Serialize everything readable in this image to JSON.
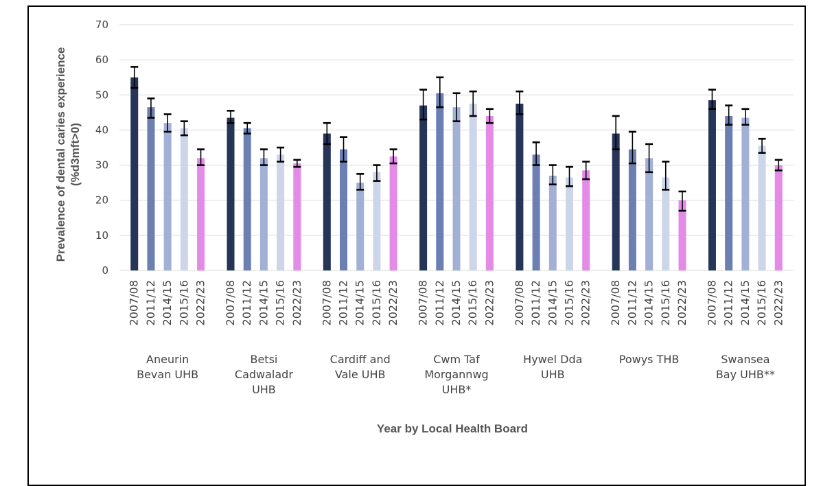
{
  "chart_data": {
    "type": "bar",
    "xlabel": "Year by Local Health Board",
    "ylabel_lines": [
      "Prevalence of dental caries experience",
      "(%d3mft>0)"
    ],
    "ylim": [
      0,
      70
    ],
    "yticks": [
      0,
      10,
      20,
      30,
      40,
      50,
      60,
      70
    ],
    "grid": "horizontal",
    "error_bars": true,
    "years": [
      "2007/08",
      "2011/12",
      "2014/15",
      "2015/16",
      "2022/23"
    ],
    "year_colors": [
      "#263457",
      "#6b7fb3",
      "#a3b0d6",
      "#cdd5ea",
      "#e38be7"
    ],
    "groups": [
      {
        "label": [
          "Aneurin",
          "Bevan UHB"
        ],
        "values": [
          55,
          46.5,
          42,
          40.5,
          32
        ],
        "ci_low": [
          52,
          43.5,
          39.5,
          38.5,
          30
        ],
        "ci_high": [
          58,
          49,
          44.5,
          42.5,
          34.5
        ]
      },
      {
        "label": [
          "Betsi",
          "Cadwaladr",
          "UHB"
        ],
        "values": [
          43.5,
          40.5,
          32,
          33,
          30.5
        ],
        "ci_low": [
          42,
          39,
          30,
          31,
          29.5
        ],
        "ci_high": [
          45.5,
          42,
          34.5,
          35,
          31.5
        ]
      },
      {
        "label": [
          "Cardiff and",
          "Vale UHB"
        ],
        "values": [
          39,
          34.5,
          25,
          28,
          32.5
        ],
        "ci_low": [
          36,
          31,
          23,
          25.5,
          30.5
        ],
        "ci_high": [
          42,
          38,
          27.5,
          30,
          34.5
        ]
      },
      {
        "label": [
          "Cwm Taf",
          "Morgannwg",
          "UHB*"
        ],
        "values": [
          47,
          50.5,
          46.5,
          47.5,
          44
        ],
        "ci_low": [
          43,
          46.5,
          42.5,
          44,
          42
        ],
        "ci_high": [
          51.5,
          55,
          50.5,
          51,
          46
        ]
      },
      {
        "label": [
          "Hywel Dda",
          "UHB"
        ],
        "values": [
          47.5,
          33,
          27,
          26.5,
          28.5
        ],
        "ci_low": [
          44.5,
          30,
          24.5,
          24,
          26
        ],
        "ci_high": [
          51,
          36.5,
          30,
          29.5,
          31
        ]
      },
      {
        "label": [
          "Powys THB"
        ],
        "values": [
          39,
          34.5,
          32,
          26.5,
          20
        ],
        "ci_low": [
          34.5,
          30.5,
          28,
          23,
          17
        ],
        "ci_high": [
          44,
          39.5,
          36,
          31,
          22.5
        ]
      },
      {
        "label": [
          "Swansea",
          "Bay UHB**"
        ],
        "values": [
          48.5,
          44,
          43.5,
          35.5,
          30
        ],
        "ci_low": [
          46,
          41.5,
          41.5,
          33.5,
          28.5
        ],
        "ci_high": [
          51.5,
          47,
          46,
          37.5,
          31.5
        ]
      }
    ]
  }
}
